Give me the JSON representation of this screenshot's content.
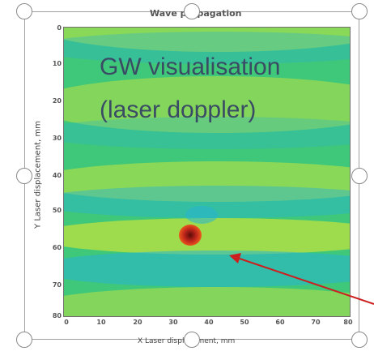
{
  "plot": {
    "title": "Wave propagation",
    "ylabel": "Y Laser displacement, mm",
    "xlabel": "X Laser displacement, mm",
    "yticks": [
      "0",
      "10",
      "20",
      "30",
      "40",
      "50",
      "60",
      "70",
      "80"
    ],
    "xticks": [
      "0",
      "10",
      "20",
      "30",
      "40",
      "50",
      "60",
      "70",
      "80"
    ]
  },
  "overlay": {
    "line1": "GW visualisation",
    "line2": "(laser doppler)"
  },
  "colors": {
    "field": "#3fc77a",
    "crest": "#c8e63c",
    "trough": "#28b4d2",
    "source": "#c0261c",
    "arrow": "#cc1f1f",
    "text": "#3a4b65"
  },
  "icons": [
    "resize-handle-icon",
    "arrow-icon"
  ]
}
